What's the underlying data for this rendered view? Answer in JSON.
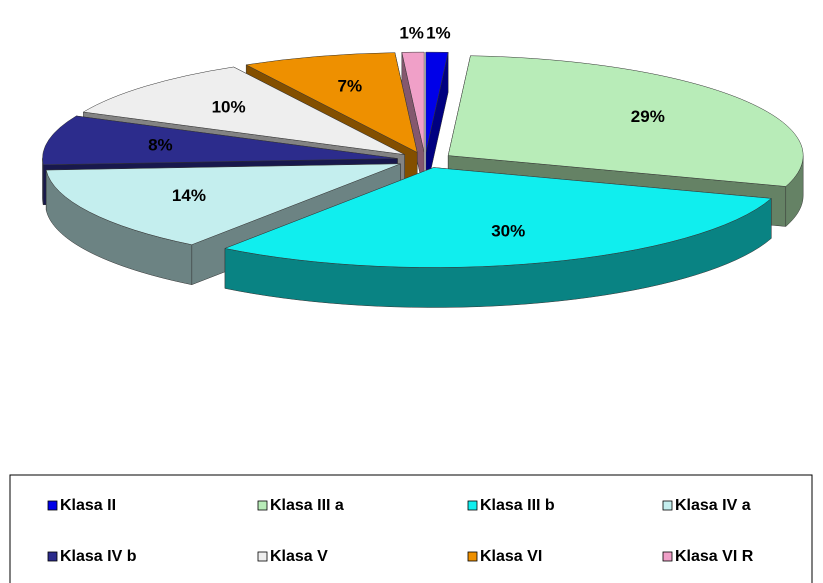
{
  "chart_data": {
    "type": "pie3d",
    "categories": [
      "Klasa II",
      "Klasa III a",
      "Klasa III b",
      "Klasa IV a",
      "Klasa IV b",
      "Klasa V",
      "Klasa VI",
      "Klasa VI R"
    ],
    "values": [
      1,
      29,
      30,
      14,
      8,
      10,
      7,
      1
    ],
    "value_labels": [
      "1%",
      "29%",
      "30%",
      "14%",
      "8%",
      "10%",
      "7%",
      "1%"
    ],
    "colors": [
      "#0000e8",
      "#b8ecb8",
      "#10eeee",
      "#c4eeee",
      "#2c2c8c",
      "#eeeeee",
      "#ee9000",
      "#f0a0c8"
    ],
    "legend": "bottom"
  }
}
